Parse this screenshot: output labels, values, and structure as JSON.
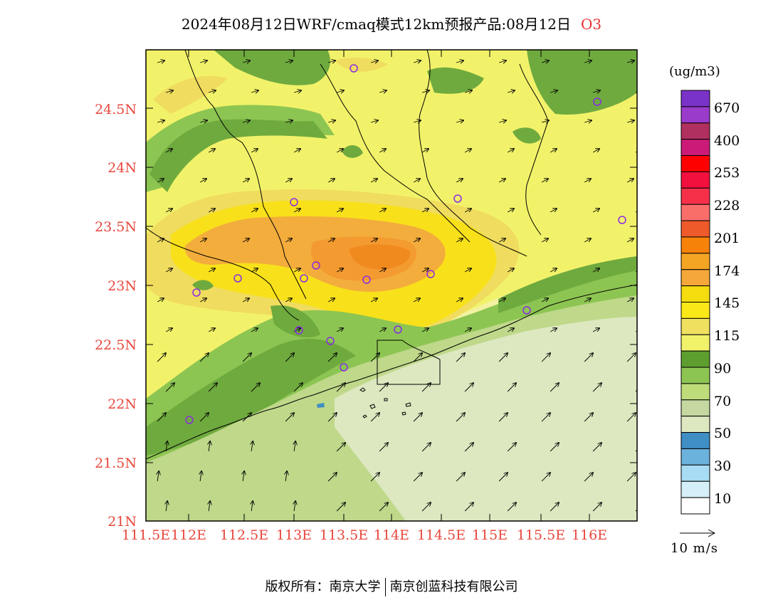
{
  "title": {
    "text": "2024年08月12日WRF/cmaq模式12km预报产品:08月12日",
    "species": "O3"
  },
  "map": {
    "lat_labels": [
      "24.5N",
      "24N",
      "23.5N",
      "23N",
      "22.5N",
      "22N",
      "21.5N",
      "21N"
    ],
    "lon_labels": [
      "111.5E",
      "112E",
      "112.5E",
      "113E",
      "113.5E",
      "114E",
      "114.5E",
      "115E",
      "115.5E",
      "116E"
    ],
    "field_colors": {
      "c50": "#dde8c0",
      "c70": "#bfd88a",
      "c90": "#8dc552",
      "c110": "#6faa3e",
      "c115": "#f2f26a",
      "c130": "#f0dc5e",
      "c145": "#f8e11a",
      "c160": "#f3ad3c",
      "c175": "#f39a30",
      "c190": "#f18a1e"
    },
    "station_color": "#8a2be2"
  },
  "legend": {
    "unit": "(ug/m3)",
    "colors": [
      "#7a33c8",
      "#9b3bcc",
      "#b0305f",
      "#cc1a78",
      "#ff0000",
      "#f2103e",
      "#f7304a",
      "#fa6e6a",
      "#ee5a2a",
      "#f7820a",
      "#f4a524",
      "#f6a73a",
      "#f5dc0e",
      "#fbe818",
      "#f0e060",
      "#f2f26a",
      "#5e9e2e",
      "#8dc552",
      "#bfdc7a",
      "#c4d8a0",
      "#dde8c0",
      "#3f8ec4",
      "#6bb2dd",
      "#a7dcf4",
      "#d6eef8",
      "#ffffff"
    ],
    "labels": [
      "670",
      "400",
      "253",
      "228",
      "201",
      "174",
      "145",
      "115",
      "90",
      "70",
      "50",
      "30",
      "10"
    ]
  },
  "wind_reference": {
    "label": "10  m/s"
  },
  "footer": {
    "left": "版权所有：南京大学",
    "right": "南京创蓝科技有限公司"
  }
}
